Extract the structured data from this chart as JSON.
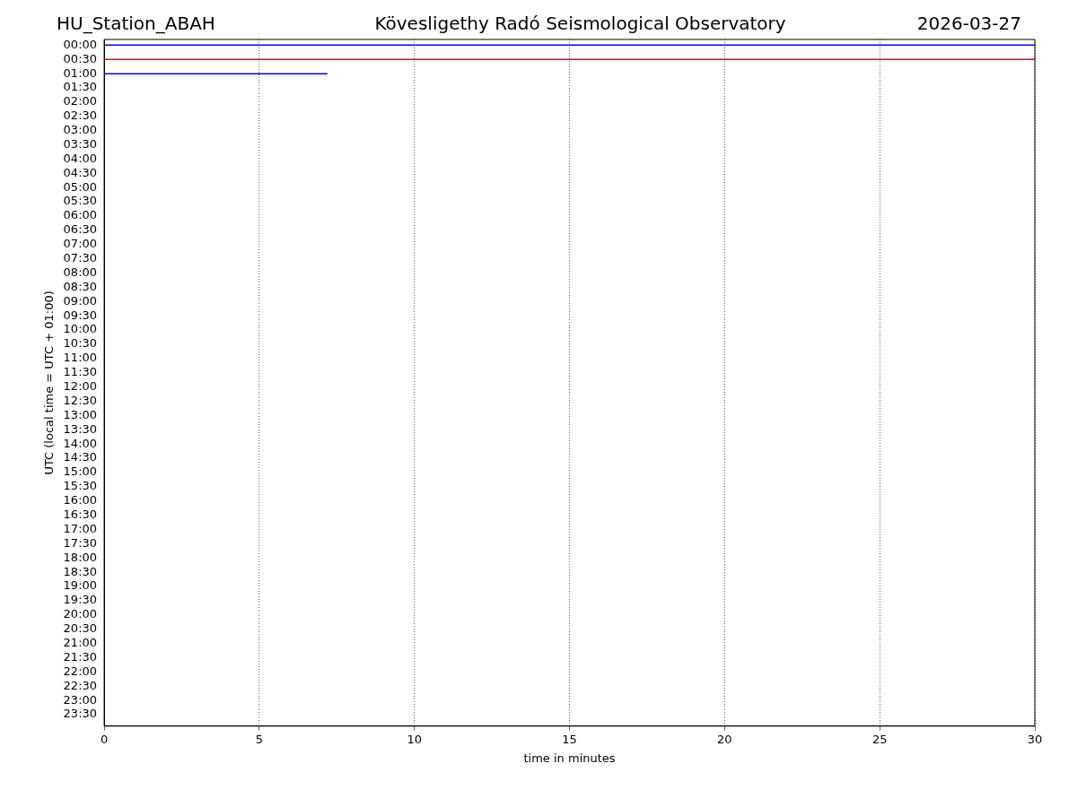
{
  "chart_data": {
    "type": "line",
    "title": "Kövesligethy Radó Seismological Observatory",
    "annotations": [
      "HU_Station_ABAH",
      "2026-03-27"
    ],
    "xlabel": "time in minutes",
    "ylabel": "UTC (local time = UTC + 01:00)",
    "xlim": [
      0,
      30
    ],
    "xticks": [
      0,
      5,
      10,
      15,
      20,
      25,
      30
    ],
    "ylim": [
      23.9,
      -0.2
    ],
    "yticks": [
      {
        "value": 0,
        "label": "00:00"
      },
      {
        "value": 0.5,
        "label": "00:30"
      },
      {
        "value": 1,
        "label": "01:00"
      },
      {
        "value": 1.5,
        "label": "01:30"
      },
      {
        "value": 2,
        "label": "02:00"
      },
      {
        "value": 2.5,
        "label": "02:30"
      },
      {
        "value": 3,
        "label": "03:00"
      },
      {
        "value": 3.5,
        "label": "03:30"
      },
      {
        "value": 4,
        "label": "04:00"
      },
      {
        "value": 4.5,
        "label": "04:30"
      },
      {
        "value": 5,
        "label": "05:00"
      },
      {
        "value": 5.5,
        "label": "05:30"
      },
      {
        "value": 6,
        "label": "06:00"
      },
      {
        "value": 6.5,
        "label": "06:30"
      },
      {
        "value": 7,
        "label": "07:00"
      },
      {
        "value": 7.5,
        "label": "07:30"
      },
      {
        "value": 8,
        "label": "08:00"
      },
      {
        "value": 8.5,
        "label": "08:30"
      },
      {
        "value": 9,
        "label": "09:00"
      },
      {
        "value": 9.5,
        "label": "09:30"
      },
      {
        "value": 10,
        "label": "10:00"
      },
      {
        "value": 10.5,
        "label": "10:30"
      },
      {
        "value": 11,
        "label": "11:00"
      },
      {
        "value": 11.5,
        "label": "11:30"
      },
      {
        "value": 12,
        "label": "12:00"
      },
      {
        "value": 12.5,
        "label": "12:30"
      },
      {
        "value": 13,
        "label": "13:00"
      },
      {
        "value": 13.5,
        "label": "13:30"
      },
      {
        "value": 14,
        "label": "14:00"
      },
      {
        "value": 14.5,
        "label": "14:30"
      },
      {
        "value": 15,
        "label": "15:00"
      },
      {
        "value": 15.5,
        "label": "15:30"
      },
      {
        "value": 16,
        "label": "16:00"
      },
      {
        "value": 16.5,
        "label": "16:30"
      },
      {
        "value": 17,
        "label": "17:00"
      },
      {
        "value": 17.5,
        "label": "17:30"
      },
      {
        "value": 18,
        "label": "18:00"
      },
      {
        "value": 18.5,
        "label": "18:30"
      },
      {
        "value": 19,
        "label": "19:00"
      },
      {
        "value": 19.5,
        "label": "19:30"
      },
      {
        "value": 20,
        "label": "20:00"
      },
      {
        "value": 20.5,
        "label": "20:30"
      },
      {
        "value": 21,
        "label": "21:00"
      },
      {
        "value": 21.5,
        "label": "21:30"
      },
      {
        "value": 22,
        "label": "22:00"
      },
      {
        "value": 22.5,
        "label": "22:30"
      },
      {
        "value": 23,
        "label": "23:00"
      },
      {
        "value": 23.5,
        "label": "23:30"
      }
    ],
    "grid": "x",
    "marker": "none",
    "series": [
      {
        "color": "#0000ff",
        "x": [
          0,
          30
        ],
        "values": [
          0,
          0
        ]
      },
      {
        "color": "#ff0000",
        "x": [
          0,
          30
        ],
        "values": [
          0.5,
          0.5
        ]
      },
      {
        "color": "#0000ff",
        "x": [
          0,
          7.2
        ],
        "values": [
          1,
          1
        ]
      }
    ]
  }
}
